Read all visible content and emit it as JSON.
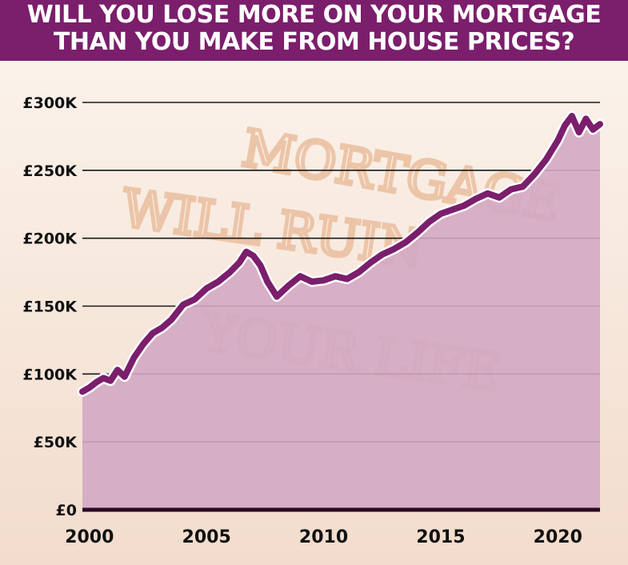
{
  "title_line1": "WILL YOU LOSE MORE ON YOUR MORTGAGE",
  "title_line2": "THAN YOU MAKE FROM HOUSE PRICES?",
  "graffiti": [
    "MORTGAGE",
    "WILL RUIN",
    "YOUR LIFE"
  ],
  "colors": {
    "banner": "#7b1e6c",
    "line": "#7b1e6c",
    "area": "#d3a8c4",
    "background": "#f8ece2"
  },
  "chart_data": {
    "type": "area",
    "title": "WILL YOU LOSE MORE ON YOUR MORTGAGE THAN YOU MAKE FROM HOUSE PRICES?",
    "xlabel": "",
    "ylabel": "",
    "xlim": [
      1999.7,
      2021.8
    ],
    "ylim": [
      0,
      300000
    ],
    "grid": true,
    "x_ticks": [
      2000,
      2005,
      2010,
      2015,
      2020
    ],
    "x_tick_labels": [
      "2000",
      "2005",
      "2010",
      "2015",
      "2020"
    ],
    "y_ticks": [
      0,
      50000,
      100000,
      150000,
      200000,
      250000,
      300000
    ],
    "y_tick_labels": [
      "£0",
      "£50K",
      "£100K",
      "£150K",
      "£200K",
      "£250K",
      "£300K"
    ],
    "x": [
      1999.7,
      2000.0,
      2000.3,
      2000.6,
      2000.9,
      2001.2,
      2001.5,
      2001.9,
      2002.3,
      2002.7,
      2003.1,
      2003.5,
      2004.0,
      2004.5,
      2005.0,
      2005.5,
      2006.0,
      2006.4,
      2006.7,
      2007.0,
      2007.3,
      2007.6,
      2008.0,
      2008.5,
      2009.0,
      2009.5,
      2010.0,
      2010.5,
      2011.0,
      2011.5,
      2012.0,
      2012.5,
      2013.0,
      2013.5,
      2014.0,
      2014.5,
      2015.0,
      2015.5,
      2016.0,
      2016.5,
      2017.0,
      2017.5,
      2018.0,
      2018.5,
      2019.0,
      2019.5,
      2020.0,
      2020.3,
      2020.6,
      2020.9,
      2021.2,
      2021.5,
      2021.8
    ],
    "series": [
      {
        "values": [
          87000,
          90000,
          94000,
          97000,
          95000,
          103000,
          98000,
          112000,
          122000,
          130000,
          134000,
          140000,
          151000,
          155000,
          163000,
          168000,
          175000,
          182000,
          190000,
          187000,
          180000,
          168000,
          157000,
          165000,
          172000,
          168000,
          169000,
          172000,
          170000,
          175000,
          182000,
          188000,
          192000,
          197000,
          204000,
          212000,
          218000,
          221000,
          224000,
          229000,
          233000,
          230000,
          236000,
          238000,
          247000,
          258000,
          272000,
          283000,
          290000,
          278000,
          288000,
          280000,
          284000
        ]
      }
    ]
  }
}
